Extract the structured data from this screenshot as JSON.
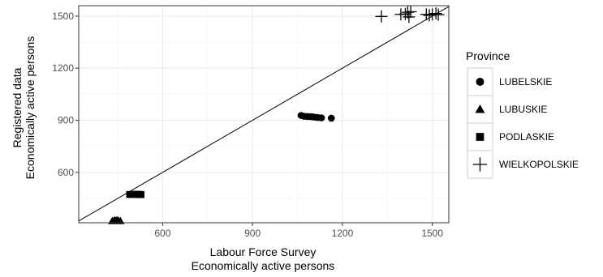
{
  "chart_data": {
    "type": "scatter",
    "xlabel": [
      "Labour Force Survey",
      "Economically active persons"
    ],
    "ylabel": [
      "Registered data",
      "Economically active persons"
    ],
    "xlim": [
      320,
      1555
    ],
    "ylim": [
      310,
      1560
    ],
    "xticks": [
      600,
      900,
      1200,
      1500
    ],
    "yticks": [
      600,
      900,
      1200,
      1500
    ],
    "grid": true,
    "legend_position": "right",
    "legend_title": "Province",
    "reference_line": {
      "type": "identity",
      "slope": 1,
      "intercept": 0
    },
    "series": [
      {
        "name": "LUBELSKIE",
        "shape": "circle",
        "points": [
          [
            1062,
            928
          ],
          [
            1072,
            923
          ],
          [
            1083,
            922
          ],
          [
            1092,
            921
          ],
          [
            1100,
            920
          ],
          [
            1108,
            918
          ],
          [
            1118,
            916
          ],
          [
            1130,
            914
          ],
          [
            1163,
            912
          ]
        ]
      },
      {
        "name": "LUBUSKIE",
        "shape": "triangle",
        "points": [
          [
            432,
            320
          ],
          [
            438,
            322
          ],
          [
            441,
            324
          ],
          [
            445,
            322
          ],
          [
            448,
            324
          ],
          [
            453,
            322
          ],
          [
            459,
            320
          ]
        ]
      },
      {
        "name": "PODLASKIE",
        "shape": "square",
        "points": [
          [
            490,
            473
          ],
          [
            497,
            473
          ],
          [
            503,
            474
          ],
          [
            509,
            473
          ],
          [
            514,
            473
          ],
          [
            518,
            474
          ],
          [
            523,
            473
          ],
          [
            528,
            472
          ]
        ]
      },
      {
        "name": "WIELKOPOLSKIE",
        "shape": "plus",
        "points": [
          [
            1330,
            1498
          ],
          [
            1395,
            1510
          ],
          [
            1410,
            1512
          ],
          [
            1418,
            1522
          ],
          [
            1428,
            1525
          ],
          [
            1422,
            1495
          ],
          [
            1480,
            1510
          ],
          [
            1490,
            1505
          ],
          [
            1500,
            1510
          ],
          [
            1512,
            1515
          ],
          [
            1520,
            1508
          ]
        ]
      }
    ]
  }
}
